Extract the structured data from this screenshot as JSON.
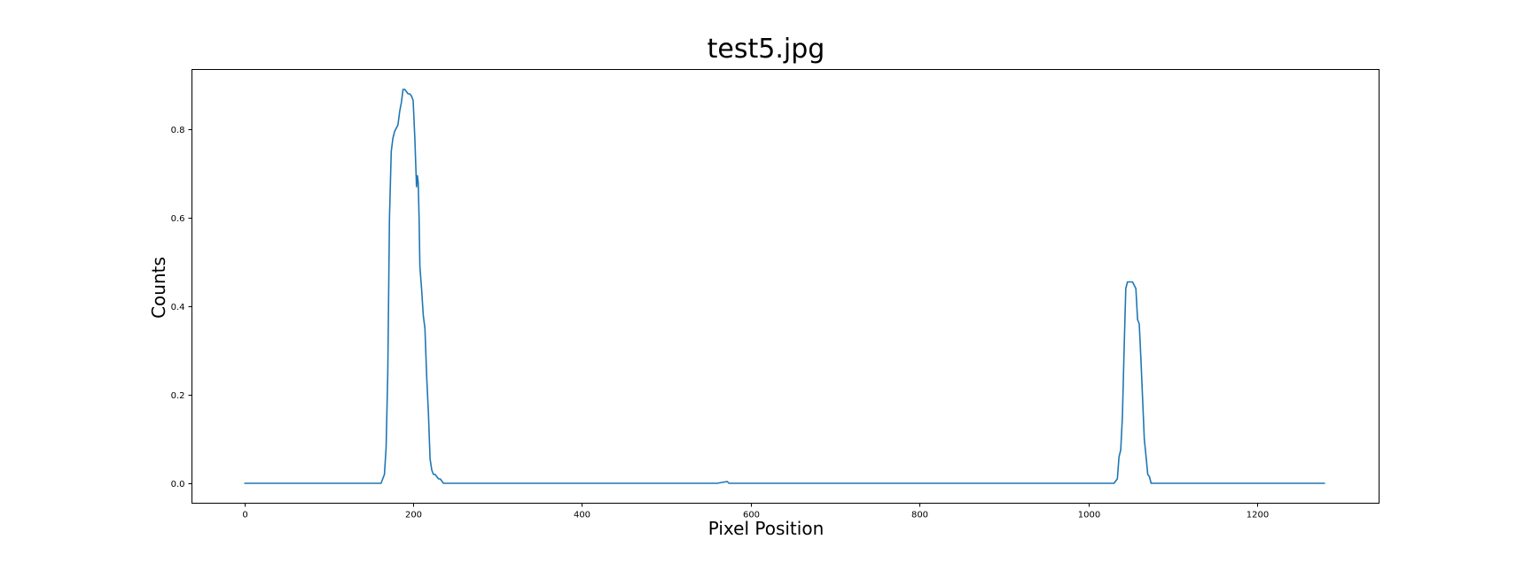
{
  "chart_data": {
    "type": "line",
    "title": "test5.jpg",
    "xlabel": "Pixel Position",
    "ylabel": "Counts",
    "xlim": [
      -62,
      1344
    ],
    "ylim": [
      -0.045,
      0.935
    ],
    "xticks": [
      0,
      200,
      400,
      600,
      800,
      1000,
      1200
    ],
    "xtick_labels": [
      "0",
      "200",
      "400",
      "600",
      "800",
      "1000",
      "1200"
    ],
    "yticks": [
      0.0,
      0.2,
      0.4,
      0.6,
      0.8
    ],
    "ytick_labels": [
      "0.0",
      "0.2",
      "0.4",
      "0.6",
      "0.8"
    ],
    "grid": false,
    "series": [
      {
        "color": "#1f77b4",
        "x": [
          0,
          100,
          162,
          166,
          168,
          170,
          172,
          174,
          176,
          178,
          182,
          184,
          186,
          188,
          190,
          194,
          196,
          198,
          200,
          202,
          204,
          205,
          206,
          207,
          208,
          210,
          212,
          214,
          216,
          218,
          220,
          222,
          224,
          226,
          228,
          230,
          232,
          234,
          236,
          238,
          240,
          300,
          400,
          500,
          560,
          572,
          574,
          576,
          590,
          700,
          800,
          900,
          1000,
          1030,
          1034,
          1036,
          1038,
          1040,
          1042,
          1044,
          1046,
          1048,
          1052,
          1056,
          1058,
          1060,
          1062,
          1064,
          1066,
          1068,
          1070,
          1072,
          1074,
          1100,
          1200,
          1280
        ],
        "y": [
          0,
          0,
          0,
          0.02,
          0.08,
          0.25,
          0.6,
          0.75,
          0.78,
          0.795,
          0.81,
          0.84,
          0.86,
          0.89,
          0.89,
          0.88,
          0.88,
          0.875,
          0.865,
          0.78,
          0.67,
          0.695,
          0.68,
          0.6,
          0.49,
          0.44,
          0.38,
          0.35,
          0.24,
          0.16,
          0.055,
          0.03,
          0.02,
          0.02,
          0.015,
          0.01,
          0.01,
          0.005,
          0,
          0,
          0,
          0,
          0,
          0,
          0,
          0.004,
          0,
          0,
          0,
          0,
          0,
          0,
          0,
          0,
          0.01,
          0.06,
          0.075,
          0.15,
          0.3,
          0.44,
          0.455,
          0.455,
          0.455,
          0.44,
          0.37,
          0.36,
          0.28,
          0.19,
          0.1,
          0.06,
          0.02,
          0.015,
          0,
          0,
          0,
          0
        ]
      }
    ]
  }
}
